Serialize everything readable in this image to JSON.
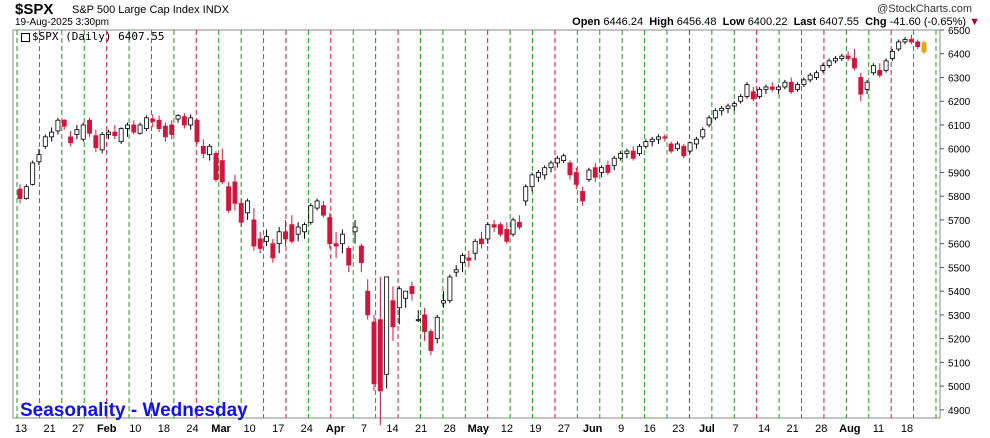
{
  "header": {
    "symbol": "$SPX",
    "description": "S&P 500 Large Cap Index INDX",
    "datetime": "19-Aug-2025 3:30pm",
    "brand": "@StockCharts.com",
    "open_label": "Open",
    "open": "6446.24",
    "high_label": "High",
    "high": "6456.48",
    "low_label": "Low",
    "low": "6400.22",
    "last_label": "Last",
    "last": "6407.55",
    "chg_label": "Chg",
    "chg": "-41.60 (-0.65%)",
    "chg_icon": "down-triangle-icon"
  },
  "legend": {
    "text": "$SPX (Daily) 6407.55"
  },
  "seasonality_label": "Seasonality - Wednesday",
  "colors": {
    "up_outline": "#000000",
    "down_fill": "#d3143c",
    "green_line": "#1f9a1f",
    "red_line": "#d3143c",
    "last_marker": "#e0a800"
  },
  "chart_data": {
    "type": "candlestick",
    "title": "$SPX (Daily)",
    "ylim": [
      4800,
      6500
    ],
    "y_ticks": [
      4900,
      5000,
      5100,
      5200,
      5300,
      5400,
      5500,
      5600,
      5700,
      5800,
      5900,
      6000,
      6100,
      6200,
      6300,
      6400,
      6500
    ],
    "x_tick_labels": [
      "13",
      "21",
      "27",
      "Feb",
      "10",
      "18",
      "24",
      "Mar",
      "10",
      "17",
      "24",
      "Apr",
      "7",
      "14",
      "21",
      "28",
      "May",
      "12",
      "19",
      "27",
      "Jun",
      "9",
      "16",
      "23",
      "Jul",
      "7",
      "14",
      "21",
      "28",
      "Aug",
      "11",
      "18"
    ],
    "wednesday_lines": [
      {
        "color": "green"
      },
      {
        "color": "green"
      },
      {
        "color": "green"
      },
      {
        "color": "green"
      },
      {
        "color": "red"
      },
      {
        "color": "green"
      },
      {
        "color": "green"
      },
      {
        "color": "green"
      },
      {
        "color": "red"
      },
      {
        "color": "green"
      },
      {
        "color": "green"
      },
      {
        "color": "green"
      },
      {
        "color": "red"
      },
      {
        "color": "green"
      },
      {
        "color": "red"
      },
      {
        "color": "green"
      },
      {
        "color": "green"
      },
      {
        "color": "red"
      },
      {
        "color": "green"
      },
      {
        "color": "green"
      },
      {
        "color": "green"
      },
      {
        "color": "red"
      },
      {
        "color": "green"
      },
      {
        "color": "green"
      },
      {
        "color": "red"
      },
      {
        "color": "green"
      },
      {
        "color": "green"
      },
      {
        "color": "green"
      },
      {
        "color": "green"
      },
      {
        "color": "green"
      },
      {
        "color": "red"
      },
      {
        "color": "green"
      },
      {
        "color": "green"
      },
      {
        "color": "red"
      },
      {
        "color": "green"
      },
      {
        "color": "green"
      },
      {
        "color": "red"
      },
      {
        "color": "green"
      },
      {
        "color": "green"
      },
      {
        "color": "red"
      },
      {
        "color": "green"
      },
      {
        "color": "green"
      }
    ],
    "ohlc": [
      [
        5830,
        5850,
        5770,
        5790
      ],
      [
        5790,
        5850,
        5785,
        5840
      ],
      [
        5850,
        5950,
        5845,
        5940
      ],
      [
        5945,
        6000,
        5930,
        5975
      ],
      [
        6010,
        6060,
        6000,
        6050
      ],
      [
        6050,
        6090,
        6030,
        6070
      ],
      [
        6075,
        6130,
        6060,
        6120
      ],
      [
        6120,
        6125,
        6080,
        6095
      ],
      [
        6050,
        6075,
        6010,
        6025
      ],
      [
        6060,
        6100,
        6040,
        6080
      ],
      [
        6040,
        6110,
        6030,
        6100
      ],
      [
        6120,
        6130,
        6050,
        6065
      ],
      [
        6055,
        6080,
        5985,
        6005
      ],
      [
        5995,
        6070,
        5980,
        6060
      ],
      [
        6060,
        6080,
        6040,
        6070
      ],
      [
        6070,
        6100,
        6040,
        6055
      ],
      [
        6030,
        6090,
        6020,
        6085
      ],
      [
        6085,
        6110,
        6050,
        6100
      ],
      [
        6100,
        6120,
        6060,
        6070
      ],
      [
        6065,
        6110,
        6060,
        6100
      ],
      [
        6085,
        6140,
        6075,
        6130
      ],
      [
        6125,
        6145,
        6090,
        6115
      ],
      [
        6120,
        6140,
        6070,
        6085
      ],
      [
        6095,
        6110,
        6030,
        6050
      ],
      [
        6100,
        6120,
        6040,
        6060
      ],
      [
        6125,
        6145,
        6110,
        6140
      ],
      [
        6135,
        6150,
        6085,
        6100
      ],
      [
        6100,
        6145,
        6080,
        6130
      ],
      [
        6120,
        6125,
        6020,
        6030
      ],
      [
        6010,
        6040,
        5960,
        5980
      ],
      [
        5975,
        6020,
        5950,
        6010
      ],
      [
        5980,
        5990,
        5860,
        5870
      ],
      [
        5950,
        6000,
        5850,
        5860
      ],
      [
        5840,
        5860,
        5730,
        5740
      ],
      [
        5860,
        5890,
        5740,
        5770
      ],
      [
        5770,
        5790,
        5670,
        5690
      ],
      [
        5730,
        5790,
        5700,
        5780
      ],
      [
        5700,
        5750,
        5570,
        5590
      ],
      [
        5620,
        5650,
        5560,
        5580
      ],
      [
        5610,
        5660,
        5590,
        5630
      ],
      [
        5600,
        5620,
        5520,
        5540
      ],
      [
        5600,
        5670,
        5560,
        5650
      ],
      [
        5650,
        5700,
        5590,
        5620
      ],
      [
        5680,
        5720,
        5600,
        5610
      ],
      [
        5640,
        5690,
        5610,
        5670
      ],
      [
        5650,
        5690,
        5620,
        5680
      ],
      [
        5690,
        5770,
        5680,
        5760
      ],
      [
        5750,
        5790,
        5740,
        5780
      ],
      [
        5760,
        5780,
        5710,
        5720
      ],
      [
        5710,
        5730,
        5580,
        5600
      ],
      [
        5600,
        5650,
        5540,
        5590
      ],
      [
        5600,
        5660,
        5560,
        5640
      ],
      [
        5580,
        5590,
        5480,
        5510
      ],
      [
        5650,
        5700,
        5600,
        5670
      ],
      [
        5590,
        5600,
        5480,
        5520
      ],
      [
        5400,
        5450,
        5280,
        5300
      ],
      [
        5270,
        5300,
        4980,
        5010
      ],
      [
        5280,
        5460,
        4835,
        4980
      ],
      [
        5050,
        5460,
        4990,
        5460
      ],
      [
        5360,
        5420,
        5190,
        5250
      ],
      [
        5330,
        5420,
        5260,
        5410
      ],
      [
        5370,
        5400,
        5330,
        5400
      ],
      [
        5420,
        5440,
        5360,
        5390
      ],
      [
        5280,
        5320,
        5270,
        5280
      ],
      [
        5300,
        5330,
        5190,
        5230
      ],
      [
        5230,
        5240,
        5130,
        5150
      ],
      [
        5200,
        5300,
        5180,
        5290
      ],
      [
        5350,
        5400,
        5330,
        5360
      ],
      [
        5360,
        5470,
        5350,
        5460
      ],
      [
        5480,
        5510,
        5460,
        5490
      ],
      [
        5520,
        5560,
        5480,
        5550
      ],
      [
        5540,
        5570,
        5500,
        5530
      ],
      [
        5560,
        5620,
        5530,
        5610
      ],
      [
        5620,
        5650,
        5580,
        5600
      ],
      [
        5620,
        5690,
        5600,
        5680
      ],
      [
        5680,
        5700,
        5650,
        5670
      ],
      [
        5680,
        5690,
        5630,
        5640
      ],
      [
        5660,
        5690,
        5600,
        5610
      ],
      [
        5640,
        5710,
        5630,
        5700
      ],
      [
        5690,
        5720,
        5660,
        5670
      ],
      [
        5780,
        5850,
        5760,
        5840
      ],
      [
        5840,
        5900,
        5820,
        5890
      ],
      [
        5880,
        5910,
        5860,
        5900
      ],
      [
        5890,
        5930,
        5870,
        5920
      ],
      [
        5920,
        5950,
        5900,
        5940
      ],
      [
        5940,
        5970,
        5920,
        5960
      ],
      [
        5950,
        5980,
        5940,
        5970
      ],
      [
        5940,
        5950,
        5870,
        5890
      ],
      [
        5900,
        5920,
        5830,
        5850
      ],
      [
        5820,
        5840,
        5760,
        5780
      ],
      [
        5870,
        5920,
        5860,
        5910
      ],
      [
        5920,
        5940,
        5860,
        5880
      ],
      [
        5900,
        5930,
        5880,
        5920
      ],
      [
        5930,
        5950,
        5890,
        5900
      ],
      [
        5930,
        5970,
        5910,
        5960
      ],
      [
        5960,
        5990,
        5950,
        5980
      ],
      [
        5980,
        6000,
        5960,
        5990
      ],
      [
        5990,
        6010,
        5950,
        5960
      ],
      [
        5980,
        6020,
        5970,
        6010
      ],
      [
        6010,
        6040,
        6000,
        6030
      ],
      [
        6030,
        6050,
        6010,
        6040
      ],
      [
        6040,
        6060,
        6020,
        6050
      ],
      [
        6050,
        6060,
        6030,
        6045
      ],
      [
        6020,
        6030,
        5980,
        5990
      ],
      [
        6000,
        6030,
        5990,
        6020
      ],
      [
        6010,
        6020,
        5960,
        5970
      ],
      [
        5990,
        6030,
        5980,
        6025
      ],
      [
        6020,
        6050,
        6000,
        6040
      ],
      [
        6050,
        6090,
        6040,
        6080
      ],
      [
        6100,
        6140,
        6090,
        6130
      ],
      [
        6130,
        6170,
        6120,
        6160
      ],
      [
        6160,
        6180,
        6140,
        6170
      ],
      [
        6170,
        6190,
        6150,
        6180
      ],
      [
        6180,
        6200,
        6160,
        6190
      ],
      [
        6200,
        6230,
        6190,
        6220
      ],
      [
        6220,
        6280,
        6210,
        6270
      ],
      [
        6240,
        6260,
        6200,
        6210
      ],
      [
        6220,
        6260,
        6210,
        6250
      ],
      [
        6250,
        6270,
        6230,
        6260
      ],
      [
        6260,
        6280,
        6240,
        6250
      ],
      [
        6250,
        6270,
        6230,
        6260
      ],
      [
        6260,
        6290,
        6250,
        6280
      ],
      [
        6280,
        6300,
        6230,
        6240
      ],
      [
        6250,
        6280,
        6240,
        6270
      ],
      [
        6270,
        6300,
        6260,
        6290
      ],
      [
        6290,
        6320,
        6280,
        6310
      ],
      [
        6300,
        6330,
        6290,
        6320
      ],
      [
        6330,
        6360,
        6320,
        6350
      ],
      [
        6350,
        6380,
        6340,
        6370
      ],
      [
        6370,
        6390,
        6360,
        6380
      ],
      [
        6380,
        6400,
        6370,
        6390
      ],
      [
        6390,
        6410,
        6370,
        6380
      ],
      [
        6380,
        6420,
        6330,
        6340
      ],
      [
        6300,
        6320,
        6200,
        6230
      ],
      [
        6250,
        6290,
        6230,
        6280
      ],
      [
        6320,
        6360,
        6310,
        6350
      ],
      [
        6330,
        6360,
        6300,
        6310
      ],
      [
        6330,
        6380,
        6320,
        6370
      ],
      [
        6380,
        6420,
        6370,
        6410
      ],
      [
        6420,
        6460,
        6410,
        6450
      ],
      [
        6450,
        6470,
        6440,
        6460
      ],
      [
        6460,
        6480,
        6440,
        6450
      ],
      [
        6450,
        6460,
        6420,
        6430
      ],
      [
        6446.24,
        6456.48,
        6400.22,
        6407.55
      ]
    ]
  }
}
